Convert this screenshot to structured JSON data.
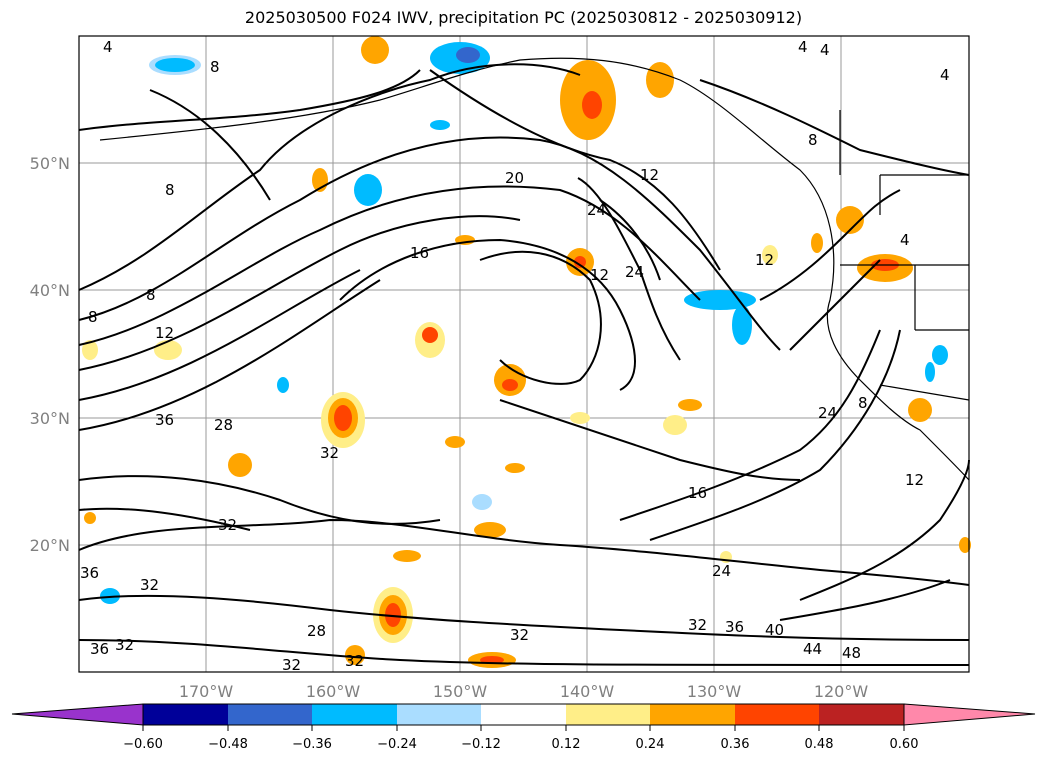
{
  "title": "2025030500 F024 IWV, precipitation PC (2025030812 - 2025030912)",
  "lat_labels": [
    "50°N",
    "40°N",
    "30°N",
    "20°N"
  ],
  "lon_labels": [
    "170°W",
    "160°W",
    "150°W",
    "140°W",
    "130°W",
    "120°W"
  ],
  "colorbar": {
    "colors": [
      "#9933cc",
      "#000099",
      "#3366cc",
      "#00bbff",
      "#aaddff",
      "#ffffff",
      "#ffee88",
      "#ffa500",
      "#ff4400",
      "#bb2222",
      "#ff88aa"
    ],
    "tick_labels": [
      "−0.60",
      "−0.48",
      "−0.36",
      "−0.24",
      "−0.12",
      "0.12",
      "0.24",
      "0.36",
      "0.48",
      "0.60"
    ]
  },
  "contour_labels": [
    "4",
    "4",
    "4",
    "4",
    "8",
    "8",
    "8",
    "8",
    "8",
    "4",
    "12",
    "12",
    "12",
    "12",
    "16",
    "16",
    "20",
    "24",
    "24",
    "24",
    "24",
    "28",
    "28",
    "8",
    "32",
    "32",
    "32",
    "32",
    "32",
    "32",
    "36",
    "36",
    "36",
    "40",
    "44",
    "48",
    "32",
    "36",
    "32",
    "12"
  ]
}
